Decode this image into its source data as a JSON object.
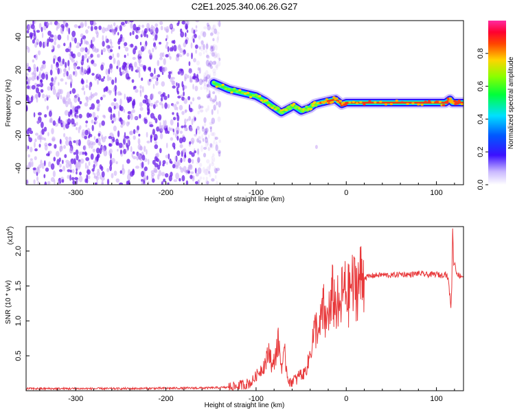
{
  "figure": {
    "title": "C2E1.2025.340.06.26.G27"
  },
  "colors": {
    "snr_line": "#e8383a",
    "scatter_dark": "#6a1ee8",
    "scatter_light": "#c9a8f5"
  },
  "chart_data": [
    {
      "type": "heatmap",
      "title": "C2E1.2025.340.06.26.G27",
      "xlabel": "Height of straight line (km)",
      "ylabel": "Frequency (Hz)",
      "xlim": [
        -355,
        130
      ],
      "ylim": [
        -50,
        50
      ],
      "xticks": [
        -300,
        -200,
        -100,
        0,
        100
      ],
      "xtick_labels": [
        "-300",
        "-200",
        "-100",
        "0",
        "100"
      ],
      "yticks": [
        -40,
        -20,
        0,
        20,
        40
      ],
      "ytick_labels": [
        "-40",
        "-20",
        "0",
        "20",
        "40"
      ],
      "noise_region": {
        "x_from": -355,
        "x_to": -140,
        "y_from": -50,
        "y_to": 50
      },
      "track": {
        "x": [
          -147,
          -130,
          -115,
          -100,
          -90,
          -80,
          -72,
          -65,
          -58,
          -50,
          -45,
          -40,
          -35,
          -28,
          -20,
          -12,
          -5,
          0,
          20,
          50,
          80,
          100,
          110,
          115,
          118,
          122,
          130
        ],
        "freq": [
          12,
          8,
          6,
          4,
          1,
          -3,
          -6,
          -4,
          -2,
          -5,
          -4,
          -3,
          -1,
          0,
          1,
          2,
          -1,
          0,
          0,
          0,
          0,
          0,
          0,
          2,
          0,
          0,
          0
        ]
      },
      "colorbar": {
        "label": "Normalized spectral amplitude",
        "range": [
          0,
          1
        ],
        "ticks": [
          0.0,
          0.2,
          0.4,
          0.6,
          0.8
        ],
        "tick_labels": [
          "0.0",
          "0.2",
          "0.4",
          "0.6",
          "0.8"
        ]
      }
    },
    {
      "type": "line",
      "xlabel": "Height of straight line (km)",
      "ylabel": "SNR (10 * v/v)",
      "exponent_label": "(x10",
      "exponent_power": "4",
      "xlim": [
        -355,
        130
      ],
      "ylim": [
        0,
        2.35
      ],
      "xticks": [
        -300,
        -200,
        -100,
        0,
        100
      ],
      "xtick_labels": [
        "-300",
        "-200",
        "-100",
        "0",
        "100"
      ],
      "yticks": [
        0.5,
        1.0,
        1.5,
        2.0
      ],
      "ytick_labels": [
        "0.5",
        "1.0",
        "1.5",
        "2.0"
      ],
      "series": [
        {
          "name": "SNR",
          "x": [
            -355,
            -250,
            -150,
            -125,
            -115,
            -105,
            -98,
            -92,
            -88,
            -85,
            -82,
            -78,
            -75,
            -72,
            -68,
            -65,
            -62,
            -58,
            -55,
            -52,
            -48,
            -45,
            -42,
            -40,
            -38,
            -35,
            -32,
            -30,
            -28,
            -25,
            -22,
            -20,
            -18,
            -15,
            -12,
            -10,
            -8,
            -5,
            -3,
            0,
            3,
            5,
            8,
            10,
            12,
            15,
            20,
            30,
            40,
            50,
            60,
            70,
            80,
            90,
            100,
            105,
            110,
            113,
            115,
            116,
            117,
            118,
            119,
            120,
            122,
            125,
            130
          ],
          "y": [
            0.03,
            0.03,
            0.04,
            0.05,
            0.08,
            0.12,
            0.25,
            0.35,
            0.45,
            0.6,
            0.3,
            0.55,
            0.7,
            0.35,
            0.5,
            0.2,
            0.1,
            0.18,
            0.15,
            0.25,
            0.22,
            0.3,
            0.4,
            0.55,
            0.7,
            0.85,
            0.95,
            0.75,
            1.05,
            1.15,
            0.9,
            1.25,
            1.05,
            1.4,
            1.2,
            1.3,
            1.05,
            1.35,
            1.45,
            1.4,
            1.35,
            1.55,
            1.45,
            1.55,
            1.5,
            1.6,
            1.62,
            1.65,
            1.66,
            1.65,
            1.67,
            1.66,
            1.68,
            1.66,
            1.67,
            1.65,
            1.68,
            1.6,
            1.35,
            1.2,
            1.5,
            2.35,
            1.8,
            1.85,
            1.7,
            1.65,
            1.64
          ]
        }
      ]
    }
  ]
}
